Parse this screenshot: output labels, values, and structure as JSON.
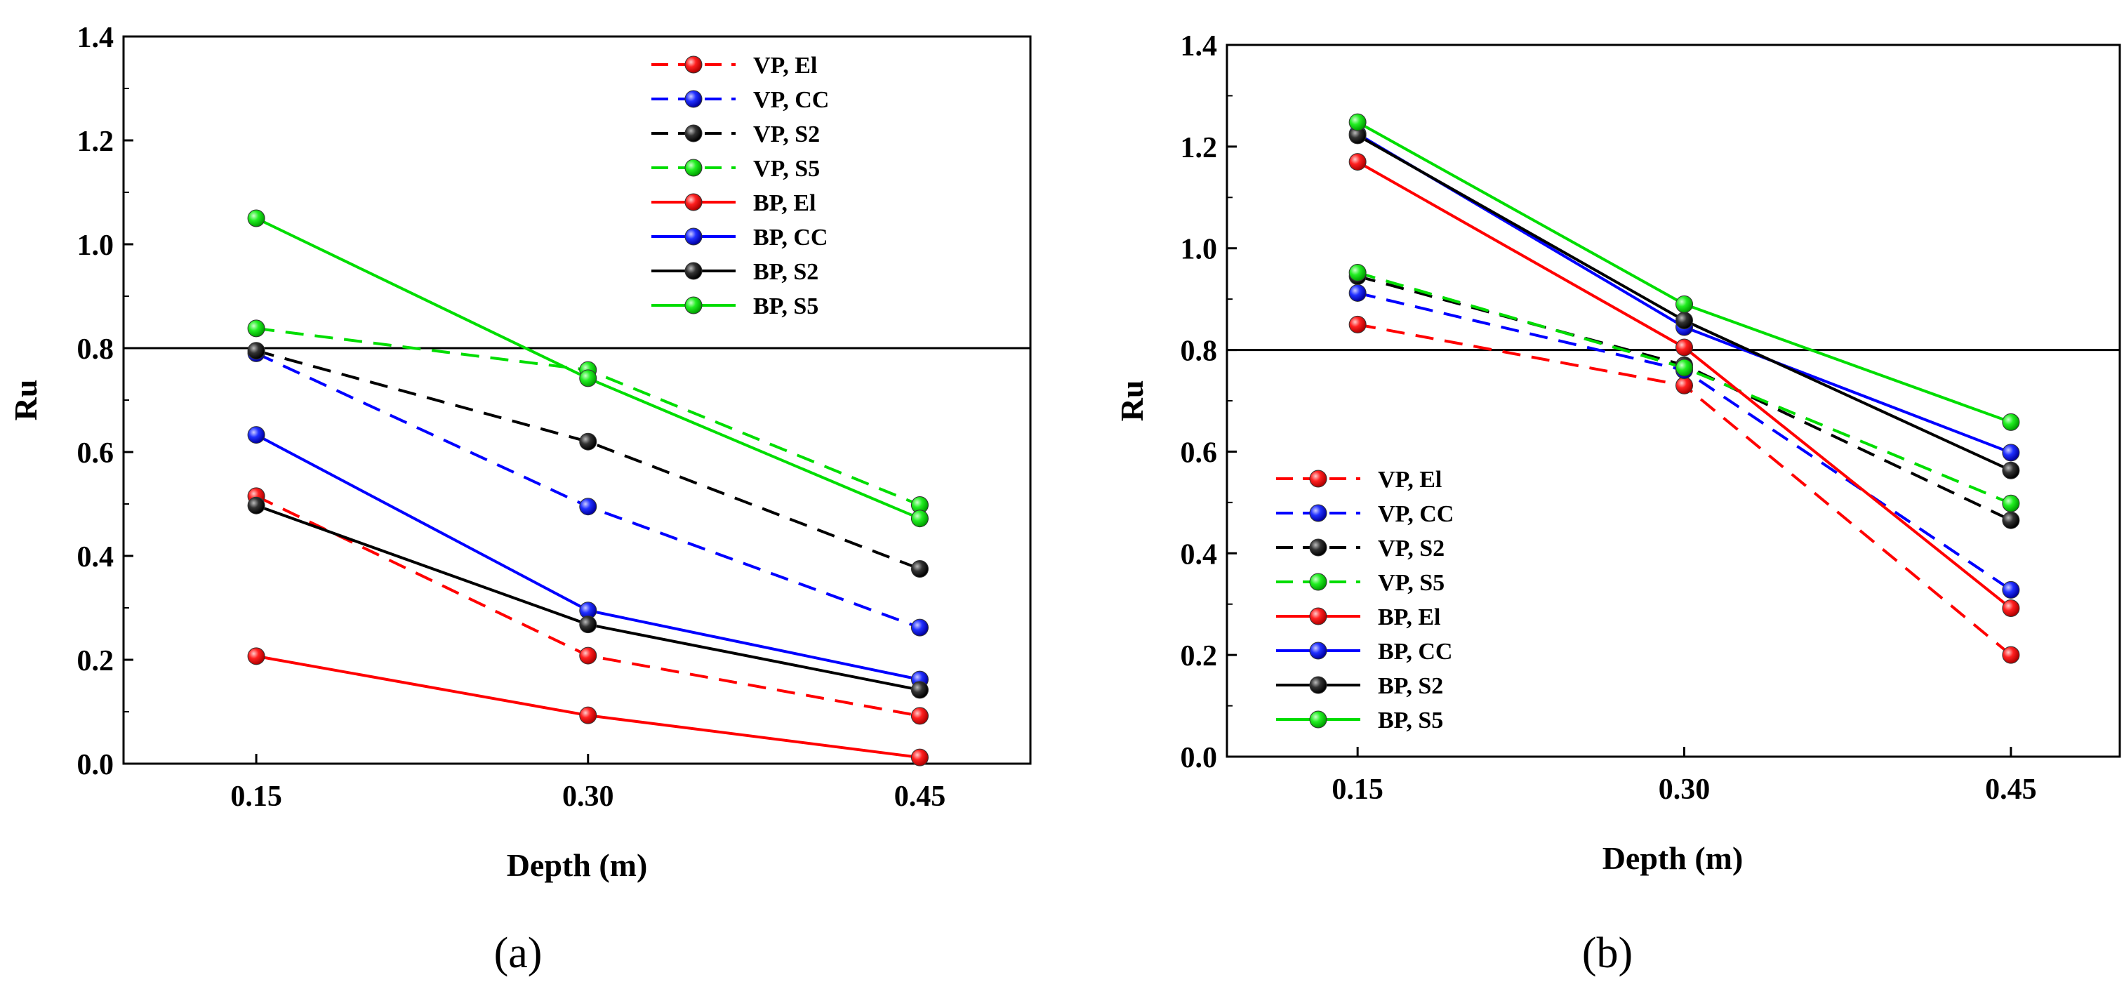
{
  "chart_data": [
    {
      "type": "line",
      "caption": "(a)",
      "xlabel": "Depth (m)",
      "ylabel": "Ru",
      "categories": [
        "0.15",
        "0.30",
        "0.45"
      ],
      "x": [
        0.15,
        0.3,
        0.45
      ],
      "xlim": [
        0.09,
        0.5
      ],
      "ylim": [
        0,
        1.4
      ],
      "yticks": [
        "0.0",
        "0.2",
        "0.4",
        "0.6",
        "0.8",
        "1.0",
        "1.2",
        "1.4"
      ],
      "reference_line": 0.8,
      "legend_position": "top-right",
      "series": [
        {
          "name": "VP,  El",
          "color": "#ff0000",
          "dash": true,
          "values": [
            0.515,
            0.208,
            0.092
          ]
        },
        {
          "name": "VP,  CC",
          "color": "#0000ff",
          "dash": true,
          "values": [
            0.79,
            0.495,
            0.262
          ]
        },
        {
          "name": "VP,  S2",
          "color": "#000000",
          "dash": true,
          "values": [
            0.795,
            0.62,
            0.375
          ]
        },
        {
          "name": "VP,  S5",
          "color": "#00dd00",
          "dash": true,
          "values": [
            0.838,
            0.758,
            0.498
          ]
        },
        {
          "name": "BP,  El",
          "color": "#ff0000",
          "dash": false,
          "values": [
            0.207,
            0.093,
            0.012
          ]
        },
        {
          "name": "BP,  CC",
          "color": "#0000ff",
          "dash": false,
          "values": [
            0.633,
            0.295,
            0.162
          ]
        },
        {
          "name": "BP,  S2",
          "color": "#000000",
          "dash": false,
          "values": [
            0.497,
            0.268,
            0.142
          ]
        },
        {
          "name": "BP,  S5",
          "color": "#00dd00",
          "dash": false,
          "values": [
            1.05,
            0.742,
            0.472
          ]
        }
      ]
    },
    {
      "type": "line",
      "caption": "(b)",
      "xlabel": "Depth (m)",
      "ylabel": "Ru",
      "categories": [
        "0.15",
        "0.30",
        "0.45"
      ],
      "x": [
        0.15,
        0.3,
        0.45
      ],
      "xlim": [
        0.09,
        0.5
      ],
      "ylim": [
        0,
        1.4
      ],
      "yticks": [
        "0.0",
        "0.2",
        "0.4",
        "0.6",
        "0.8",
        "1.0",
        "1.2",
        "1.4"
      ],
      "reference_line": 0.8,
      "legend_position": "bottom-left",
      "series": [
        {
          "name": "VP,  El",
          "color": "#ff0000",
          "dash": true,
          "values": [
            0.85,
            0.73,
            0.2
          ]
        },
        {
          "name": "VP,  CC",
          "color": "#0000ff",
          "dash": true,
          "values": [
            0.912,
            0.76,
            0.328
          ]
        },
        {
          "name": "VP,  S2",
          "color": "#000000",
          "dash": true,
          "values": [
            0.945,
            0.77,
            0.465
          ]
        },
        {
          "name": "VP,  S5",
          "color": "#00dd00",
          "dash": true,
          "values": [
            0.952,
            0.765,
            0.498
          ]
        },
        {
          "name": "BP,  El",
          "color": "#ff0000",
          "dash": false,
          "values": [
            1.17,
            0.805,
            0.292
          ]
        },
        {
          "name": "BP,  CC",
          "color": "#0000ff",
          "dash": false,
          "values": [
            1.225,
            0.845,
            0.598
          ]
        },
        {
          "name": "BP,  S2",
          "color": "#000000",
          "dash": false,
          "values": [
            1.222,
            0.858,
            0.563
          ]
        },
        {
          "name": "BP,  S5",
          "color": "#00dd00",
          "dash": false,
          "values": [
            1.248,
            0.89,
            0.658
          ]
        }
      ]
    }
  ]
}
